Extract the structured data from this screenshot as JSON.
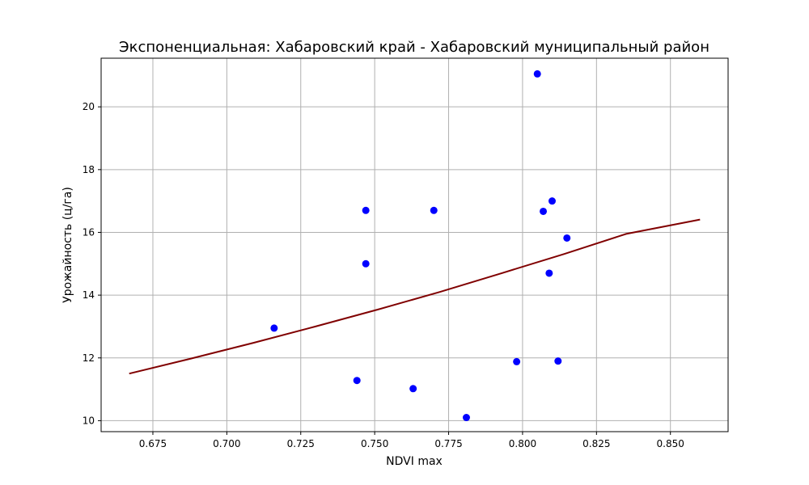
{
  "chart_data": {
    "type": "scatter",
    "title": "Экспоненциальная: Хабаровский край - Хабаровский муниципальный район",
    "xlabel": "NDVI max",
    "ylabel": "Урожайность (ц/га)",
    "xlim": [
      0.6575,
      0.8695
    ],
    "ylim": [
      9.65,
      21.55
    ],
    "xticks": [
      0.675,
      0.7,
      0.725,
      0.75,
      0.775,
      0.8,
      0.825,
      0.85
    ],
    "xtick_labels": [
      "0.675",
      "0.700",
      "0.725",
      "0.750",
      "0.775",
      "0.800",
      "0.825",
      "0.850"
    ],
    "yticks": [
      10,
      12,
      14,
      16,
      18,
      20
    ],
    "ytick_labels": [
      "10",
      "12",
      "14",
      "16",
      "18",
      "20"
    ],
    "grid": true,
    "scatter_color": "#0000ff",
    "fit_color": "#800000",
    "points": [
      {
        "x": 0.716,
        "y": 12.95
      },
      {
        "x": 0.744,
        "y": 11.28
      },
      {
        "x": 0.747,
        "y": 16.7
      },
      {
        "x": 0.747,
        "y": 15.0
      },
      {
        "x": 0.763,
        "y": 11.02
      },
      {
        "x": 0.77,
        "y": 16.7
      },
      {
        "x": 0.781,
        "y": 10.1
      },
      {
        "x": 0.798,
        "y": 11.88
      },
      {
        "x": 0.805,
        "y": 21.05
      },
      {
        "x": 0.807,
        "y": 16.67
      },
      {
        "x": 0.809,
        "y": 14.7
      },
      {
        "x": 0.81,
        "y": 17.0
      },
      {
        "x": 0.812,
        "y": 11.9
      },
      {
        "x": 0.815,
        "y": 15.82
      }
    ],
    "fit": {
      "model": "exponential",
      "x": [
        0.667,
        0.688,
        0.709,
        0.73,
        0.751,
        0.772,
        0.793,
        0.814,
        0.835,
        0.86
      ],
      "y": [
        11.5,
        11.98,
        12.48,
        13.0,
        13.54,
        14.1,
        14.7,
        15.31,
        15.95,
        16.41
      ]
    }
  }
}
